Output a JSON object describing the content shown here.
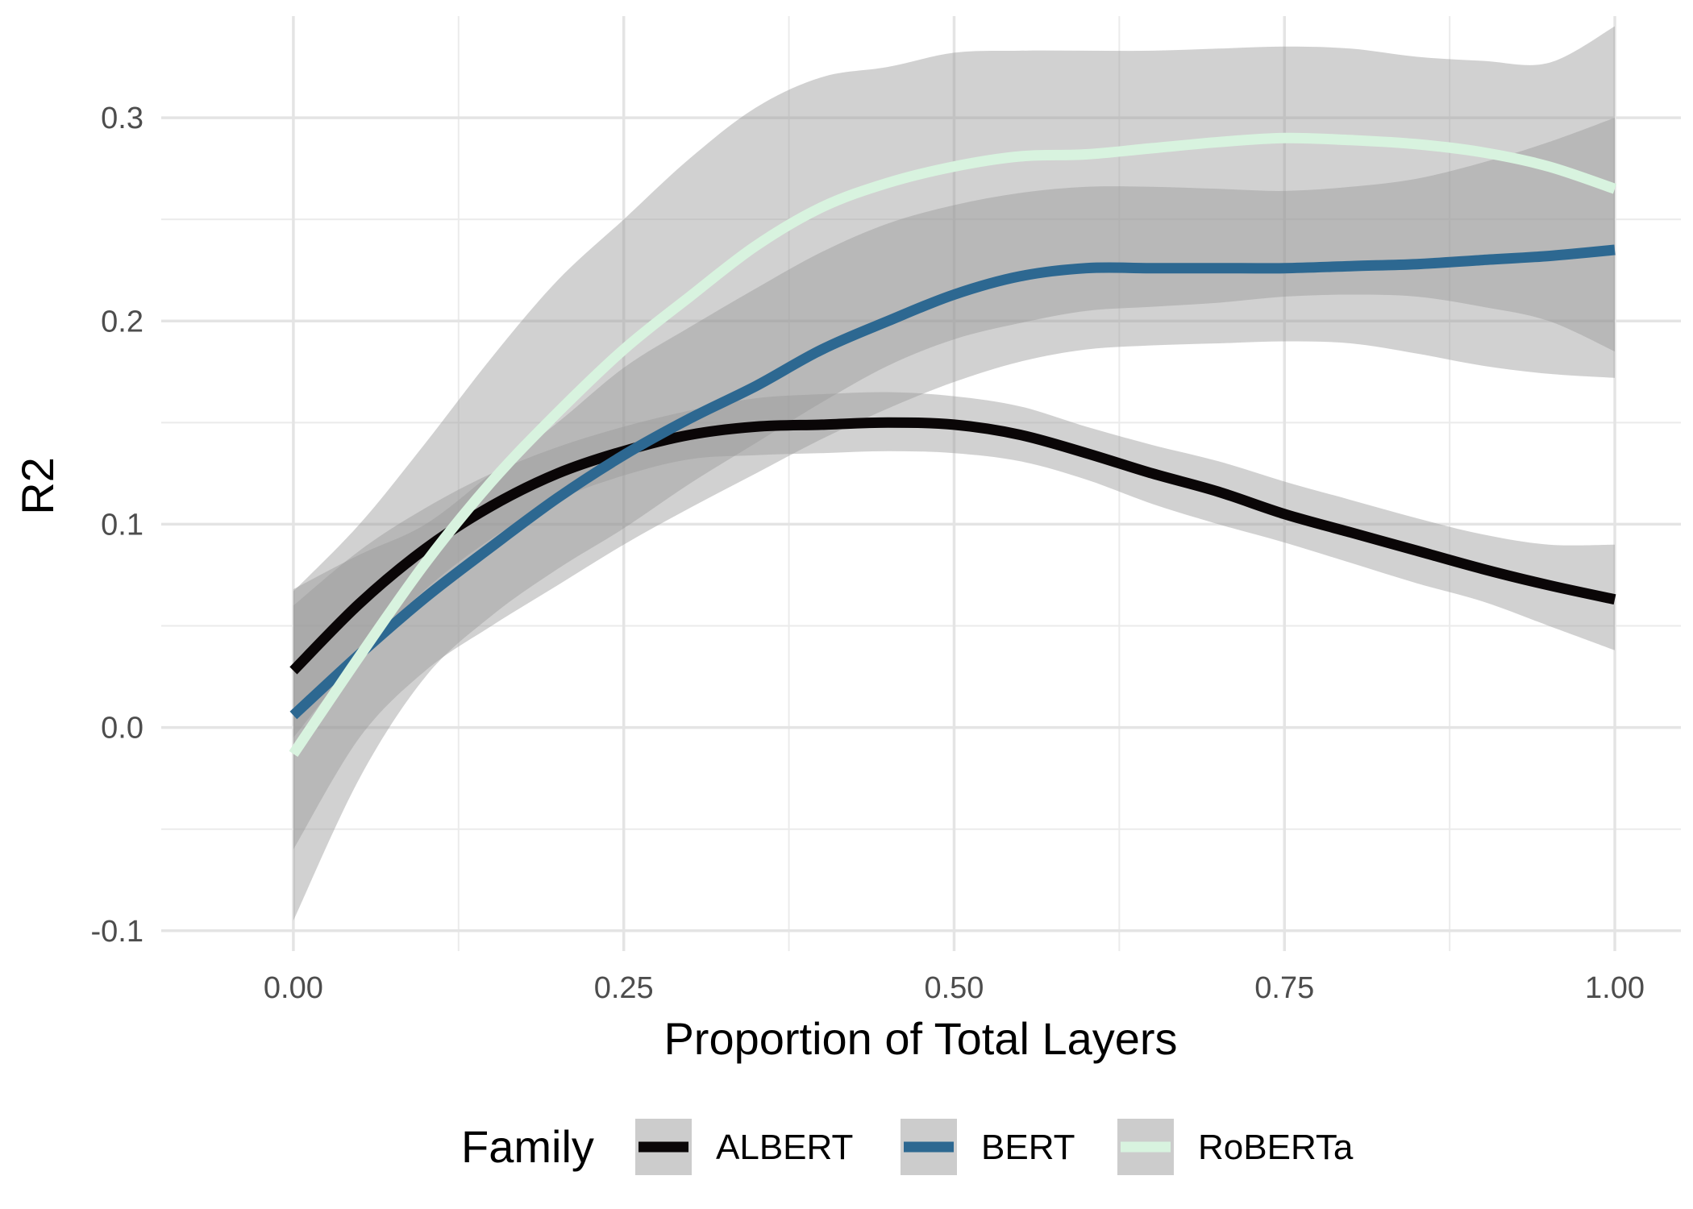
{
  "chart_data": {
    "type": "line",
    "title": "",
    "xlabel": "Proportion of Total Layers",
    "ylabel": "R2",
    "xlim": [
      -0.1,
      1.05
    ],
    "ylim": [
      -0.11,
      0.35
    ],
    "x_ticks": [
      0.0,
      0.25,
      0.5,
      0.75,
      1.0
    ],
    "x_tick_labels": [
      "0.00",
      "0.25",
      "0.50",
      "0.75",
      "1.00"
    ],
    "y_ticks": [
      -0.1,
      0.0,
      0.1,
      0.2,
      0.3
    ],
    "y_tick_labels": [
      "-0.1",
      "0.0",
      "0.1",
      "0.2",
      "0.3"
    ],
    "grid": true,
    "legend": {
      "title": "Family",
      "position": "bottom",
      "band_color": "#cccccc"
    },
    "series": [
      {
        "name": "ALBERT",
        "color": "#0a0607",
        "x": [
          0.0,
          0.05,
          0.1,
          0.15,
          0.2,
          0.25,
          0.3,
          0.35,
          0.4,
          0.45,
          0.5,
          0.55,
          0.6,
          0.65,
          0.7,
          0.75,
          0.8,
          0.85,
          0.9,
          0.95,
          1.0
        ],
        "y": [
          0.028,
          0.061,
          0.088,
          0.109,
          0.125,
          0.136,
          0.144,
          0.148,
          0.149,
          0.15,
          0.149,
          0.144,
          0.135,
          0.125,
          0.116,
          0.105,
          0.096,
          0.087,
          0.078,
          0.07,
          0.063
        ],
        "ci_lower": [
          -0.005,
          0.035,
          0.068,
          0.093,
          0.112,
          0.124,
          0.132,
          0.134,
          0.135,
          0.136,
          0.135,
          0.131,
          0.122,
          0.11,
          0.1,
          0.091,
          0.081,
          0.071,
          0.062,
          0.05,
          0.038
        ],
        "ci_upper": [
          0.06,
          0.087,
          0.108,
          0.125,
          0.138,
          0.148,
          0.156,
          0.162,
          0.164,
          0.165,
          0.163,
          0.158,
          0.148,
          0.139,
          0.131,
          0.121,
          0.112,
          0.103,
          0.095,
          0.09,
          0.09
        ]
      },
      {
        "name": "BERT",
        "color": "#2d6891",
        "x": [
          0.0,
          0.05,
          0.1,
          0.15,
          0.2,
          0.25,
          0.3,
          0.35,
          0.4,
          0.45,
          0.5,
          0.55,
          0.6,
          0.65,
          0.7,
          0.75,
          0.8,
          0.85,
          0.9,
          0.95,
          1.0
        ],
        "y": [
          0.006,
          0.036,
          0.064,
          0.089,
          0.113,
          0.134,
          0.152,
          0.168,
          0.186,
          0.2,
          0.213,
          0.222,
          0.226,
          0.226,
          0.226,
          0.226,
          0.227,
          0.228,
          0.23,
          0.232,
          0.235
        ],
        "ci_lower": [
          -0.06,
          -0.005,
          0.028,
          0.05,
          0.07,
          0.09,
          0.108,
          0.125,
          0.142,
          0.157,
          0.17,
          0.18,
          0.186,
          0.188,
          0.189,
          0.19,
          0.189,
          0.184,
          0.178,
          0.174,
          0.172
        ],
        "ci_upper": [
          0.068,
          0.085,
          0.1,
          0.125,
          0.15,
          0.177,
          0.197,
          0.216,
          0.234,
          0.248,
          0.257,
          0.263,
          0.266,
          0.266,
          0.265,
          0.264,
          0.266,
          0.27,
          0.278,
          0.288,
          0.3
        ]
      },
      {
        "name": "RoBERTa",
        "color": "#d8f3df",
        "x": [
          0.0,
          0.05,
          0.1,
          0.15,
          0.2,
          0.25,
          0.3,
          0.35,
          0.4,
          0.45,
          0.5,
          0.55,
          0.6,
          0.65,
          0.7,
          0.75,
          0.8,
          0.85,
          0.9,
          0.95,
          1.0
        ],
        "y": [
          -0.013,
          0.035,
          0.081,
          0.121,
          0.155,
          0.186,
          0.212,
          0.237,
          0.256,
          0.268,
          0.276,
          0.281,
          0.282,
          0.285,
          0.288,
          0.29,
          0.289,
          0.287,
          0.283,
          0.276,
          0.265
        ],
        "ci_lower": [
          -0.095,
          -0.025,
          0.025,
          0.055,
          0.078,
          0.098,
          0.12,
          0.14,
          0.16,
          0.178,
          0.191,
          0.199,
          0.205,
          0.207,
          0.209,
          0.212,
          0.213,
          0.212,
          0.207,
          0.2,
          0.185
        ],
        "ci_upper": [
          0.067,
          0.1,
          0.14,
          0.182,
          0.22,
          0.25,
          0.28,
          0.305,
          0.32,
          0.325,
          0.332,
          0.333,
          0.333,
          0.333,
          0.334,
          0.335,
          0.334,
          0.33,
          0.328,
          0.327,
          0.345
        ]
      }
    ]
  }
}
